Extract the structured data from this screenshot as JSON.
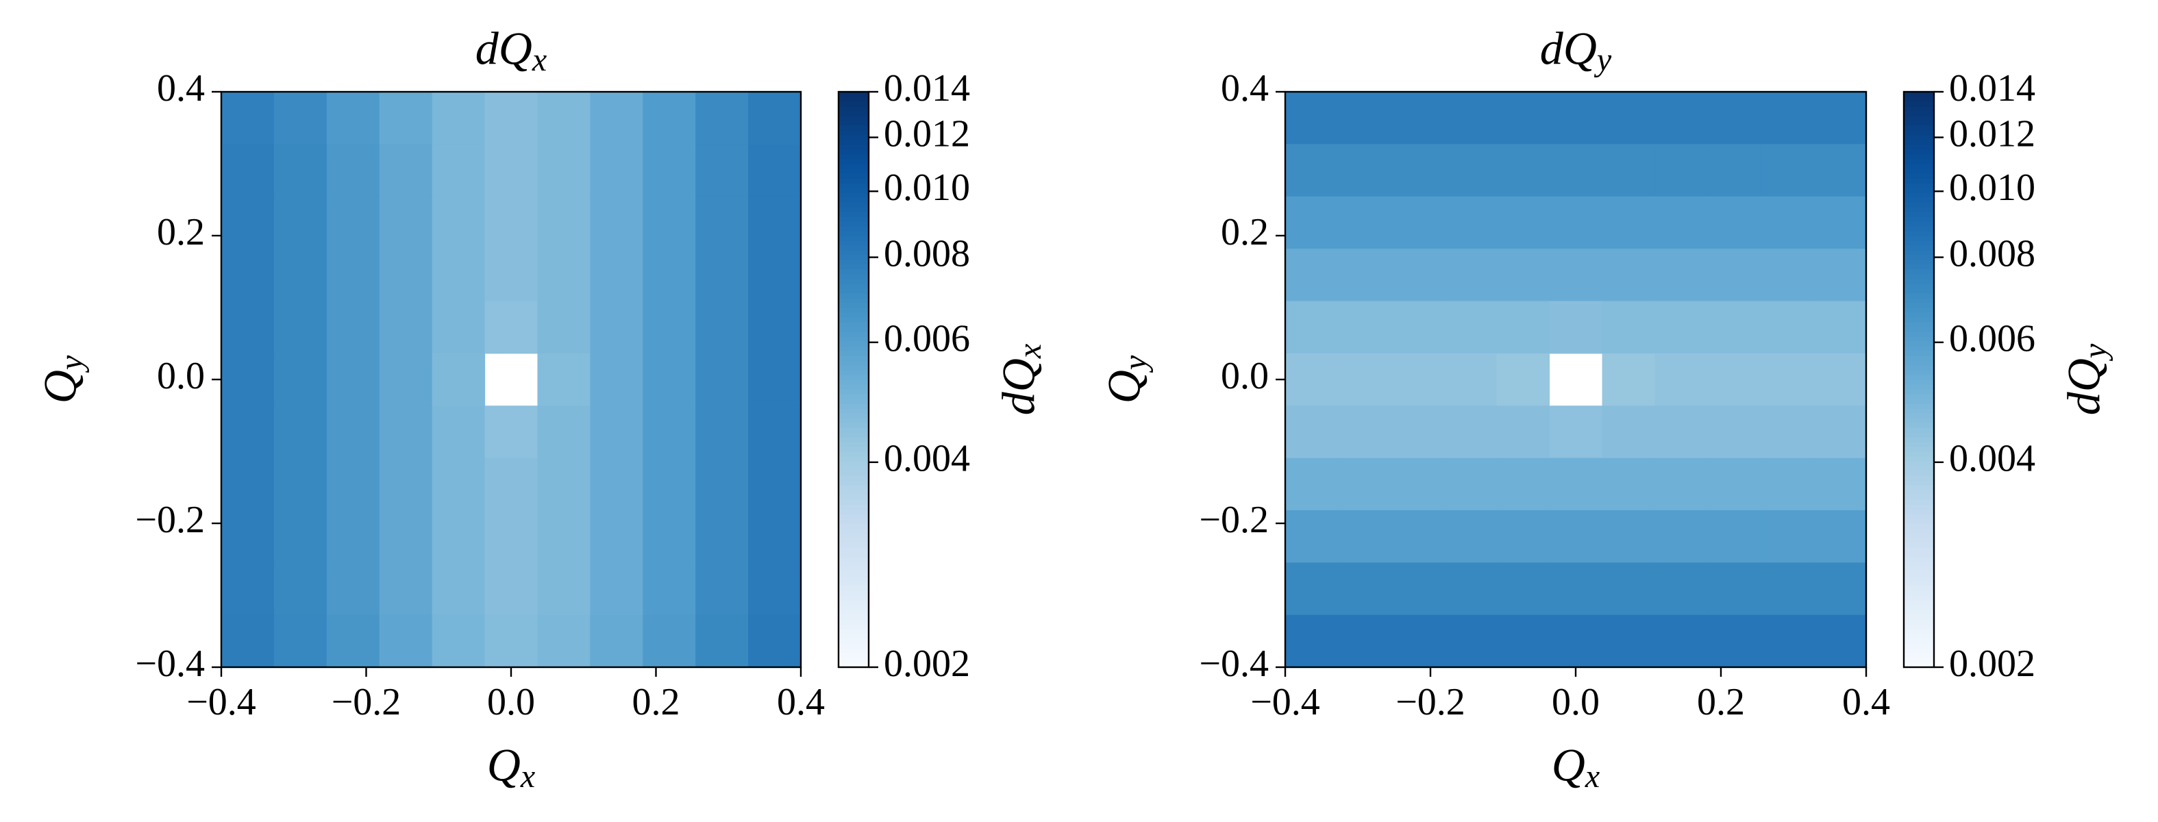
{
  "chart_data": [
    {
      "type": "heatmap",
      "title": "dQx",
      "xlabel": "Qx",
      "ylabel": "Qy",
      "xlim": [
        -0.4,
        0.4
      ],
      "ylim": [
        -0.4,
        0.4
      ],
      "xticks": [
        {
          "value": -0.4,
          "label": "−0.4"
        },
        {
          "value": -0.2,
          "label": "−0.2"
        },
        {
          "value": 0,
          "label": "0.0"
        },
        0.2,
        0.4
      ],
      "yticks": [
        {
          "value": -0.4,
          "label": "−0.4"
        },
        {
          "value": -0.2,
          "label": "−0.2"
        },
        {
          "value": 0,
          "label": "0.0"
        },
        0.2,
        0.4
      ],
      "colormap": [
        "#f7fbff",
        "#deebf7",
        "#c6dbef",
        "#9ecae1",
        "#6baed6",
        "#4292c6",
        "#2171b5",
        "#08519c",
        "#08306b"
      ],
      "colorbar": {
        "label": "dQx",
        "scale": "log",
        "lim": [
          0.002,
          0.014
        ],
        "ticks": [
          0.002,
          0.004,
          0.006,
          0.008,
          {
            "value": 0.01,
            "label": "0.010"
          },
          0.012,
          0.014
        ]
      },
      "z": [
        [
          0.0077,
          0.0071,
          0.0063,
          0.0055,
          0.0049,
          0.0046,
          0.0048,
          0.0054,
          0.0062,
          0.0071,
          0.0079
        ],
        [
          0.0078,
          0.0072,
          0.0064,
          0.0056,
          0.0049,
          0.0046,
          0.0048,
          0.0054,
          0.0062,
          0.0071,
          0.008
        ],
        [
          0.0078,
          0.0072,
          0.0064,
          0.0056,
          0.0049,
          0.0046,
          0.0048,
          0.0054,
          0.0062,
          0.0071,
          0.008
        ],
        [
          0.0078,
          0.0072,
          0.0064,
          0.0056,
          0.0049,
          0.0046,
          0.0048,
          0.0054,
          0.0062,
          0.0071,
          0.008
        ],
        [
          0.0078,
          0.0072,
          0.0064,
          0.0056,
          0.0049,
          0.0045,
          0.0048,
          0.0054,
          0.0062,
          0.0071,
          0.008
        ],
        [
          0.0078,
          0.0072,
          0.0064,
          0.0056,
          0.0048,
          null,
          0.0047,
          0.0054,
          0.0062,
          0.0071,
          0.008
        ],
        [
          0.0078,
          0.0072,
          0.0064,
          0.0056,
          0.0049,
          0.0045,
          0.0048,
          0.0054,
          0.0062,
          0.0071,
          0.008
        ],
        [
          0.0078,
          0.0072,
          0.0064,
          0.0056,
          0.0049,
          0.0046,
          0.0048,
          0.0054,
          0.0062,
          0.0071,
          0.008
        ],
        [
          0.0078,
          0.0072,
          0.0064,
          0.0056,
          0.0049,
          0.0046,
          0.0048,
          0.0054,
          0.0062,
          0.0071,
          0.008
        ],
        [
          0.0078,
          0.0072,
          0.0064,
          0.0056,
          0.0049,
          0.0046,
          0.0048,
          0.0054,
          0.0062,
          0.0071,
          0.008
        ],
        [
          0.0079,
          0.0073,
          0.0065,
          0.0057,
          0.005,
          0.0047,
          0.0049,
          0.0055,
          0.0063,
          0.0072,
          0.0081
        ]
      ]
    },
    {
      "type": "heatmap",
      "title": "dQy",
      "xlabel": "Qx",
      "ylabel": "Qy",
      "xlim": [
        -0.4,
        0.4
      ],
      "ylim": [
        -0.4,
        0.4
      ],
      "xticks": [
        {
          "value": -0.4,
          "label": "−0.4"
        },
        {
          "value": -0.2,
          "label": "−0.2"
        },
        {
          "value": 0,
          "label": "0.0"
        },
        0.2,
        0.4
      ],
      "yticks": [
        {
          "value": -0.4,
          "label": "−0.4"
        },
        {
          "value": -0.2,
          "label": "−0.2"
        },
        {
          "value": 0,
          "label": "0.0"
        },
        0.2,
        0.4
      ],
      "colormap": [
        "#f7fbff",
        "#deebf7",
        "#c6dbef",
        "#9ecae1",
        "#6baed6",
        "#4292c6",
        "#2171b5",
        "#08519c",
        "#08306b"
      ],
      "colorbar": {
        "label": "dQy",
        "scale": "log",
        "lim": [
          0.002,
          0.014
        ],
        "ticks": [
          0.002,
          0.004,
          0.006,
          0.008,
          {
            "value": 0.01,
            "label": "0.010"
          },
          0.012,
          0.014
        ]
      },
      "z": [
        [
          0.0078,
          0.0078,
          0.0078,
          0.0078,
          0.0078,
          0.0078,
          0.0078,
          0.0078,
          0.0078,
          0.0078,
          0.0078
        ],
        [
          0.007,
          0.007,
          0.007,
          0.007,
          0.007,
          0.007,
          0.007,
          0.007,
          0.007,
          0.007,
          0.007
        ],
        [
          0.0062,
          0.0062,
          0.0062,
          0.0062,
          0.0062,
          0.0062,
          0.0062,
          0.0062,
          0.0062,
          0.0062,
          0.0062
        ],
        [
          0.0054,
          0.0054,
          0.0054,
          0.0054,
          0.0054,
          0.0054,
          0.0054,
          0.0054,
          0.0054,
          0.0054,
          0.0054
        ],
        [
          0.0047,
          0.0047,
          0.0047,
          0.0047,
          0.0047,
          0.0046,
          0.0047,
          0.0047,
          0.0047,
          0.0047,
          0.0047
        ],
        [
          0.0044,
          0.0044,
          0.0044,
          0.0044,
          0.0043,
          null,
          0.0043,
          0.0044,
          0.0044,
          0.0044,
          0.0044
        ],
        [
          0.0046,
          0.0046,
          0.0046,
          0.0046,
          0.0046,
          0.0045,
          0.0046,
          0.0046,
          0.0046,
          0.0046,
          0.0046
        ],
        [
          0.0052,
          0.0052,
          0.0052,
          0.0052,
          0.0052,
          0.0052,
          0.0052,
          0.0052,
          0.0052,
          0.0052,
          0.0052
        ],
        [
          0.0061,
          0.0061,
          0.0061,
          0.0061,
          0.0061,
          0.0061,
          0.0061,
          0.0061,
          0.0061,
          0.0061,
          0.0061
        ],
        [
          0.0072,
          0.0072,
          0.0072,
          0.0072,
          0.0072,
          0.0072,
          0.0072,
          0.0072,
          0.0072,
          0.0072,
          0.0072
        ],
        [
          0.0083,
          0.0083,
          0.0083,
          0.0083,
          0.0083,
          0.0083,
          0.0083,
          0.0083,
          0.0083,
          0.0083,
          0.0083
        ]
      ]
    }
  ]
}
